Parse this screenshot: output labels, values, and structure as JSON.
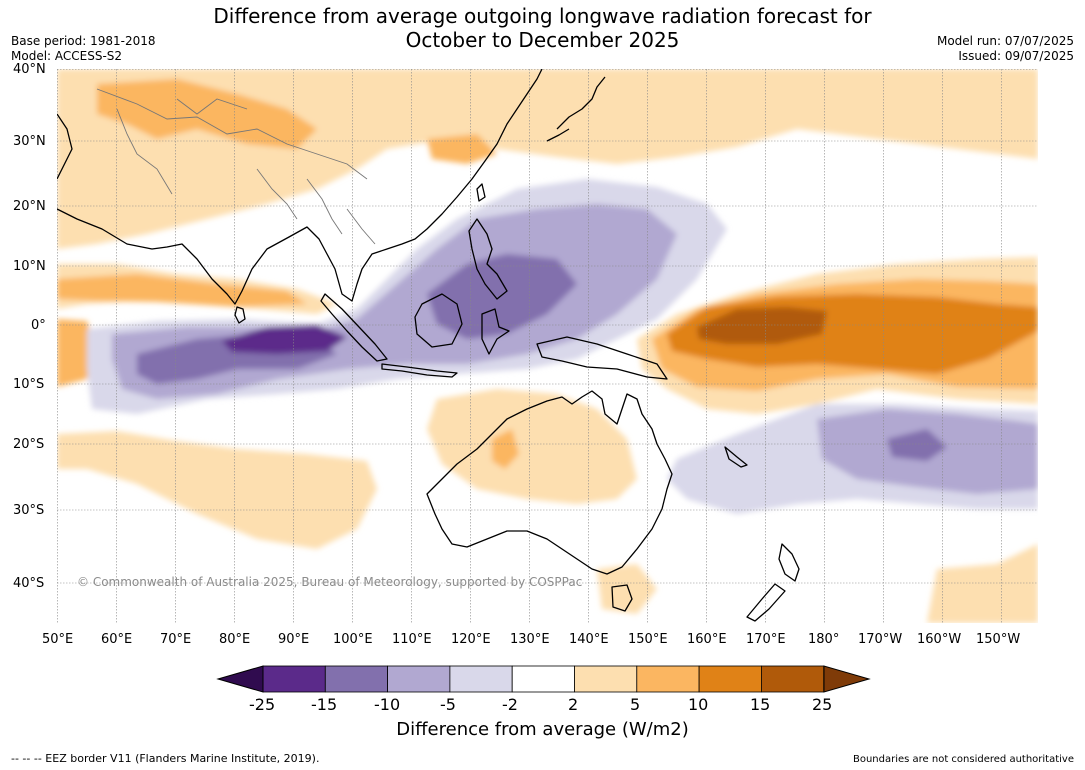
{
  "header": {
    "title_line1": "Difference from average outgoing longwave radiation forecast for",
    "title_line2": "October to December 2025",
    "base_period": "Base period: 1981-2018",
    "model": "Model: ACCESS-S2",
    "model_run": "Model run: 07/07/2025",
    "issued": "Issued: 09/07/2025"
  },
  "map": {
    "copyright": "© Commonwealth of Australia 2025, Bureau of Meteorology, supported by COSPPac",
    "lat_labels": [
      "40°N",
      "30°N",
      "20°N",
      "10°N",
      "0°",
      "10°S",
      "20°S",
      "30°S",
      "40°S"
    ],
    "lon_labels": [
      "50°E",
      "60°E",
      "70°E",
      "80°E",
      "90°E",
      "100°E",
      "110°E",
      "120°E",
      "130°E",
      "140°E",
      "150°E",
      "160°E",
      "170°E",
      "180°",
      "170°W",
      "160°W",
      "150°W"
    ]
  },
  "colorbar": {
    "ticks": [
      "-25",
      "-15",
      "-10",
      "-5",
      "-2",
      "2",
      "5",
      "10",
      "15",
      "25"
    ],
    "colors": [
      "#5b2a8a",
      "#8270ad",
      "#b1a8d1",
      "#d9d8ea",
      "#ffffff",
      "#fddfb0",
      "#fbb661",
      "#e08217",
      "#b05a0a"
    ],
    "under_color": "#300b4f",
    "over_color": "#7f3b08",
    "label": "Difference from average (W/m2)"
  },
  "footer": {
    "legend": "--  --  -- EEZ border V11 (Flanders Marine Institute, 2019).",
    "disclaimer": "Boundaries are not considered authoritative"
  }
}
